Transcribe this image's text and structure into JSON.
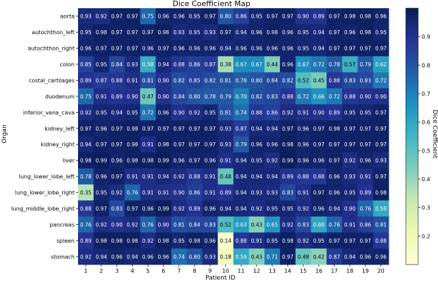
{
  "chart_data": {
    "type": "heatmap",
    "title": "Dice Coefficient Map",
    "xlabel": "Patient ID",
    "ylabel": "Organ",
    "x": [
      "1",
      "2",
      "3",
      "4",
      "5",
      "6",
      "7",
      "8",
      "9",
      "10",
      "11",
      "12",
      "13",
      "14",
      "15",
      "16",
      "17",
      "18",
      "19",
      "20"
    ],
    "y": [
      "aorta",
      "autochthon_left",
      "autochthon_right",
      "colon",
      "costal_cartilages",
      "duodenum",
      "inferior_vena_cava",
      "kidney_left",
      "kidney_right",
      "liver",
      "lung_lower_lobe_left",
      "lung_lower_lobe_right",
      "lung_middle_lobe_right",
      "pancreas",
      "spleen",
      "stomach"
    ],
    "values": [
      [
        "0.93",
        "0.92",
        "0.97",
        "0.97",
        "0.75",
        "0.96",
        "0.96",
        "0.95",
        "0.97",
        "0.80",
        "0.86",
        "0.95",
        "0.97",
        "0.97",
        "0.90",
        "0.89",
        "0.97",
        "0.98",
        "0.98",
        "0.96"
      ],
      [
        "0.95",
        "0.98",
        "0.97",
        "0.97",
        "0.97",
        "0.98",
        "0.93",
        "0.95",
        "0.93",
        "0.97",
        "0.94",
        "0.96",
        "0.98",
        "0.96",
        "0.95",
        "0.94",
        "0.97",
        "0.96",
        "0.98",
        "0.95"
      ],
      [
        "0.96",
        "0.97",
        "0.97",
        "0.97",
        "0.96",
        "0.97",
        "0.96",
        "0.96",
        "0.96",
        "0.94",
        "0.96",
        "0.96",
        "0.96",
        "0.96",
        "0.95",
        "0.94",
        "0.97",
        "0.97",
        "0.97",
        "0.97"
      ],
      [
        "0.85",
        "0.95",
        "0.84",
        "0.93",
        "0.58",
        "0.94",
        "0.88",
        "0.86",
        "0.87",
        "0.38",
        "0.67",
        "0.67",
        "0.44",
        "0.96",
        "0.67",
        "0.72",
        "0.78",
        "0.57",
        "0.79",
        "0.62"
      ],
      [
        "0.89",
        "0.87",
        "0.88",
        "0.91",
        "0.81",
        "0.90",
        "0.82",
        "0.85",
        "0.82",
        "0.81",
        "0.78",
        "0.80",
        "0.84",
        "0.82",
        "0.52",
        "0.45",
        "0.88",
        "0.83",
        "0.83",
        "0.72"
      ],
      [
        "0.75",
        "0.91",
        "0.89",
        "0.90",
        "0.47",
        "0.90",
        "0.84",
        "0.80",
        "0.78",
        "0.79",
        "0.70",
        "0.82",
        "0.83",
        "0.88",
        "0.72",
        "0.66",
        "0.72",
        "0.88",
        "0.90",
        "0.90"
      ],
      [
        "0.92",
        "0.95",
        "0.94",
        "0.95",
        "0.72",
        "0.96",
        "0.90",
        "0.92",
        "0.95",
        "0.81",
        "0.74",
        "0.88",
        "0.86",
        "0.92",
        "0.91",
        "0.90",
        "0.89",
        "0.95",
        "0.95",
        "0.97"
      ],
      [
        "0.97",
        "0.96",
        "0.97",
        "0.98",
        "0.97",
        "0.97",
        "0.97",
        "0.97",
        "0.97",
        "0.93",
        "0.87",
        "0.94",
        "0.94",
        "0.97",
        "0.96",
        "0.97",
        "0.98",
        "0.97",
        "0.97",
        "0.97"
      ],
      [
        "0.94",
        "0.97",
        "0.97",
        "0.98",
        "0.91",
        "0.98",
        "0.97",
        "0.97",
        "0.97",
        "0.93",
        "0.79",
        "0.96",
        "0.96",
        "0.98",
        "0.96",
        "0.97",
        "0.97",
        "0.97",
        "0.97",
        "0.97"
      ],
      [
        "0.98",
        "0.99",
        "0.96",
        "0.98",
        "0.98",
        "0.99",
        "0.96",
        "0.97",
        "0.96",
        "0.91",
        "0.94",
        "0.95",
        "0.92",
        "0.99",
        "0.96",
        "0.96",
        "0.97",
        "0.92",
        "0.96",
        "0.93"
      ],
      [
        "0.78",
        "0.96",
        "0.97",
        "0.91",
        "0.91",
        "0.94",
        "0.92",
        "0.88",
        "0.91",
        "0.48",
        "0.94",
        "0.94",
        "0.94",
        "0.89",
        "0.88",
        "0.88",
        "0.96",
        "0.93",
        "0.91",
        "0.97"
      ],
      [
        "0.35",
        "0.95",
        "0.92",
        "0.76",
        "0.91",
        "0.91",
        "0.90",
        "0.86",
        "0.91",
        "0.89",
        "0.94",
        "0.93",
        "0.93",
        "0.83",
        "0.91",
        "0.97",
        "0.96",
        "0.95",
        "0.89",
        "0.98"
      ],
      [
        "0.88",
        "0.97",
        "0.83",
        "0.97",
        "0.96",
        "0.99",
        "0.92",
        "0.89",
        "0.96",
        "0.94",
        "0.94",
        "0.92",
        "0.95",
        "0.95",
        "0.92",
        "0.96",
        "0.94",
        "0.90",
        "0.76",
        "0.59"
      ],
      [
        "0.76",
        "0.92",
        "0.90",
        "0.92",
        "0.76",
        "0.90",
        "0.81",
        "0.84",
        "0.83",
        "0.52",
        "0.63",
        "0.43",
        "0.65",
        "0.92",
        "0.83",
        "0.60",
        "0.76",
        "0.91",
        "0.86",
        "0.81"
      ],
      [
        "0.89",
        "0.98",
        "0.98",
        "0.98",
        "0.92",
        "0.98",
        "0.95",
        "0.98",
        "0.96",
        "0.14",
        "0.88",
        "0.91",
        "0.95",
        "0.98",
        "0.92",
        "0.95",
        "0.97",
        "0.97",
        "0.97",
        "0.88"
      ],
      [
        "0.92",
        "0.94",
        "0.96",
        "0.94",
        "0.96",
        "0.96",
        "0.74",
        "0.80",
        "0.93",
        "0.18",
        "0.59",
        "0.43",
        "0.71",
        "0.97",
        "0.48",
        "0.42",
        "0.87",
        "0.94",
        "0.96",
        "0.96"
      ]
    ],
    "colorbar": {
      "label": "Dice Coefficient",
      "range": [
        0.1,
        1.0
      ],
      "ticks": [
        "0.2",
        "0.3",
        "0.4",
        "0.5",
        "0.6",
        "0.7",
        "0.8",
        "0.9"
      ],
      "colormap": "YlGnBu"
    },
    "grid": false
  }
}
